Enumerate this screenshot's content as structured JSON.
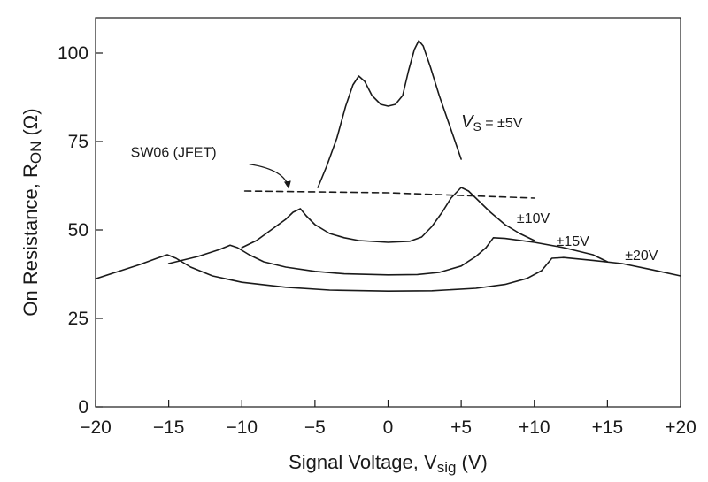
{
  "chart_data": {
    "type": "line",
    "title": "",
    "xlabel": "Signal Voltage, V",
    "xlabel_sub": "sig",
    "xlabel_unit": " (V)",
    "ylabel": "On Resistance, R",
    "ylabel_sub": "ON",
    "ylabel_unit": " (Ω)",
    "xlim": [
      -20,
      20
    ],
    "ylim": [
      0,
      110
    ],
    "grid": false,
    "x_ticks": [
      {
        "value": -20,
        "label": "−20"
      },
      {
        "value": -15,
        "label": "−15"
      },
      {
        "value": -10,
        "label": "−10"
      },
      {
        "value": -5,
        "label": "−5"
      },
      {
        "value": 0,
        "label": "0"
      },
      {
        "value": 5,
        "label": "+5"
      },
      {
        "value": 10,
        "label": "+10"
      },
      {
        "value": 15,
        "label": "+15"
      },
      {
        "value": 20,
        "label": "+20"
      }
    ],
    "y_ticks": [
      {
        "value": 0,
        "label": "0"
      },
      {
        "value": 25,
        "label": "25"
      },
      {
        "value": 50,
        "label": "50"
      },
      {
        "value": 75,
        "label": "75"
      },
      {
        "value": 100,
        "label": "100"
      }
    ],
    "series": [
      {
        "name": "±5V",
        "label_prefix": "V",
        "label_sub": "S",
        "label_suffix": " = ±5V",
        "label_at": [
          5.0,
          79
        ],
        "dash": false,
        "points": [
          [
            -4.8,
            62
          ],
          [
            -4.2,
            68
          ],
          [
            -3.5,
            76
          ],
          [
            -2.9,
            85
          ],
          [
            -2.4,
            91
          ],
          [
            -2.0,
            93.5
          ],
          [
            -1.6,
            92
          ],
          [
            -1.1,
            88
          ],
          [
            -0.5,
            85.5
          ],
          [
            0,
            85
          ],
          [
            0.5,
            85.5
          ],
          [
            1.0,
            88
          ],
          [
            1.4,
            95
          ],
          [
            1.8,
            101
          ],
          [
            2.1,
            103.5
          ],
          [
            2.4,
            102
          ],
          [
            2.9,
            96
          ],
          [
            3.5,
            88
          ],
          [
            4.0,
            82
          ],
          [
            4.5,
            76
          ],
          [
            5.0,
            70
          ]
        ]
      },
      {
        "name": "±10V",
        "label_prefix": "",
        "label_sub": "",
        "label_suffix": "±10V",
        "label_at": [
          8.8,
          52
        ],
        "dash": false,
        "points": [
          [
            -10,
            45
          ],
          [
            -9,
            47
          ],
          [
            -8,
            50
          ],
          [
            -7,
            53
          ],
          [
            -6.5,
            55
          ],
          [
            -6,
            56
          ],
          [
            -5.6,
            54
          ],
          [
            -5,
            51.5
          ],
          [
            -4,
            49
          ],
          [
            -3,
            47.8
          ],
          [
            -2,
            47
          ],
          [
            0,
            46.5
          ],
          [
            1.5,
            46.8
          ],
          [
            2.3,
            48
          ],
          [
            3,
            51
          ],
          [
            3.7,
            55
          ],
          [
            4.3,
            59
          ],
          [
            5,
            62
          ],
          [
            5.5,
            61
          ],
          [
            6,
            59
          ],
          [
            7,
            55
          ],
          [
            8,
            51.5
          ],
          [
            9,
            49
          ],
          [
            10,
            47
          ]
        ]
      },
      {
        "name": "±15V",
        "label_prefix": "",
        "label_sub": "",
        "label_suffix": "±15V",
        "label_at": [
          11.5,
          45.5
        ],
        "dash": false,
        "points": [
          [
            -15,
            40.5
          ],
          [
            -13,
            42.5
          ],
          [
            -11.5,
            44.5
          ],
          [
            -10.8,
            45.7
          ],
          [
            -10.3,
            45
          ],
          [
            -9.5,
            43
          ],
          [
            -8.5,
            41
          ],
          [
            -7,
            39.5
          ],
          [
            -5,
            38.3
          ],
          [
            -3,
            37.6
          ],
          [
            0,
            37.3
          ],
          [
            2,
            37.4
          ],
          [
            3.5,
            38
          ],
          [
            5,
            39.8
          ],
          [
            6,
            42.5
          ],
          [
            6.7,
            45
          ],
          [
            7.2,
            47.8
          ],
          [
            8,
            47.6
          ],
          [
            10,
            46.5
          ],
          [
            12,
            45
          ],
          [
            14,
            43
          ],
          [
            15,
            41
          ]
        ]
      },
      {
        "name": "±20V",
        "label_prefix": "",
        "label_sub": "",
        "label_suffix": "±20V",
        "label_at": [
          16.2,
          41.5
        ],
        "dash": false,
        "points": [
          [
            -20,
            36.2
          ],
          [
            -18.5,
            38.2
          ],
          [
            -17,
            40.2
          ],
          [
            -15.8,
            42
          ],
          [
            -15.1,
            43
          ],
          [
            -14.5,
            42
          ],
          [
            -13.5,
            39.5
          ],
          [
            -12,
            37
          ],
          [
            -10,
            35.2
          ],
          [
            -7,
            33.8
          ],
          [
            -4,
            33
          ],
          [
            0,
            32.7
          ],
          [
            3,
            32.8
          ],
          [
            6,
            33.5
          ],
          [
            8,
            34.6
          ],
          [
            9.5,
            36.3
          ],
          [
            10.5,
            38.5
          ],
          [
            11.2,
            42
          ],
          [
            12,
            42.2
          ],
          [
            14,
            41.4
          ],
          [
            16,
            40.5
          ],
          [
            18,
            38.8
          ],
          [
            20,
            37
          ]
        ]
      },
      {
        "name": "SW06 (JFET)",
        "label_prefix": "",
        "label_sub": "",
        "label_suffix": "SW06 (JFET)",
        "label_at": [
          -17.6,
          70.6
        ],
        "dash": true,
        "points": [
          [
            -9.8,
            61
          ],
          [
            0,
            60.5
          ],
          [
            10,
            59
          ]
        ]
      }
    ],
    "annotations": [
      {
        "type": "arrow",
        "target_series": "SW06 (JFET)",
        "from": [
          -9.5,
          68.6
        ],
        "control": [
          -7,
          67
        ],
        "to": [
          -6.8,
          61.8
        ]
      }
    ]
  }
}
